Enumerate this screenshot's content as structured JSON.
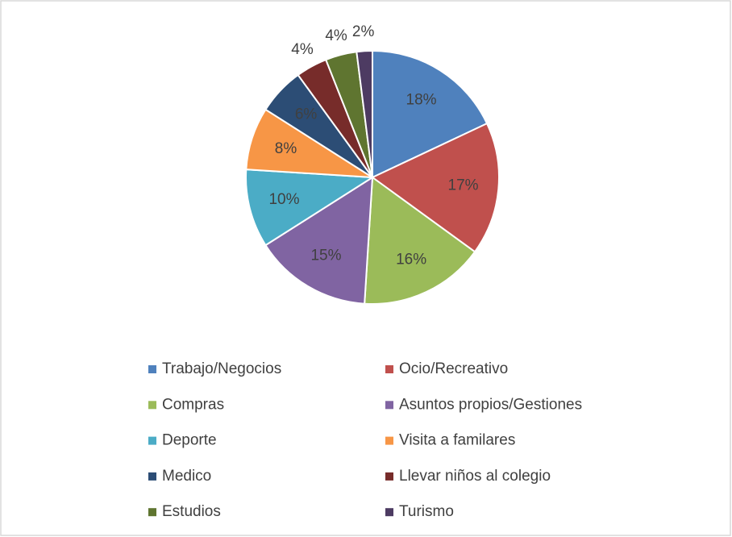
{
  "chart_data": {
    "type": "pie",
    "categories": [
      "Trabajo/Negocios",
      "Ocio/Recreativo",
      "Compras",
      "Asuntos propios/Gestiones",
      "Deporte",
      "Visita a familares",
      "Medico",
      "Llevar niños al colegio",
      "Estudios",
      "Turismo"
    ],
    "values": [
      18,
      17,
      16,
      15,
      10,
      8,
      6,
      4,
      4,
      2
    ],
    "value_labels": [
      "18%",
      "17%",
      "16%",
      "15%",
      "10%",
      "8%",
      "6%",
      "4%",
      "4%",
      "2%"
    ],
    "colors": [
      "#4f81bd",
      "#c0504d",
      "#9bbb59",
      "#8064a2",
      "#4bacc6",
      "#f79646",
      "#2c4d75",
      "#772c2a",
      "#5f7530",
      "#4d3b62"
    ],
    "legend": "bottom"
  }
}
